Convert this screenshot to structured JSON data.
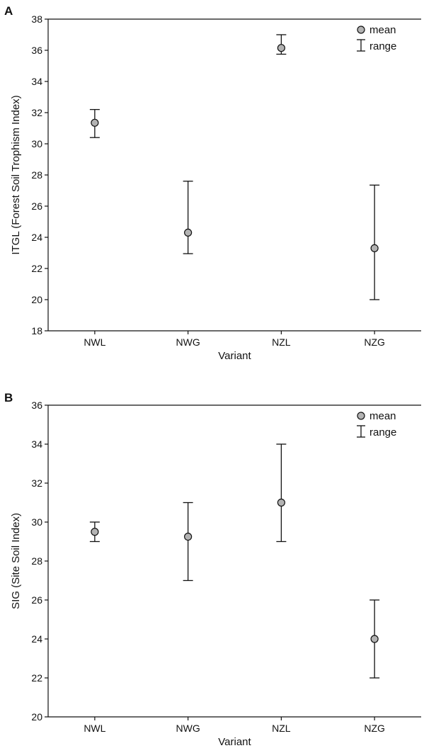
{
  "chart_data": [
    {
      "panel": "A",
      "type": "scatter",
      "xlabel": "Variant",
      "ylabel": "ITGL (Forest Soil Trophism Index)",
      "categories": [
        "NWL",
        "NWG",
        "NZL",
        "NZG"
      ],
      "ylim": [
        18,
        38
      ],
      "yticks": [
        18,
        20,
        22,
        24,
        26,
        28,
        30,
        32,
        34,
        36,
        38
      ],
      "series": [
        {
          "name": "mean",
          "values": [
            31.35,
            24.3,
            36.15,
            23.3
          ]
        },
        {
          "name": "range",
          "min": [
            30.4,
            22.95,
            35.75,
            20.0
          ],
          "max": [
            32.2,
            27.6,
            37.0,
            27.35
          ]
        }
      ],
      "legend": {
        "position": "top-right",
        "entries": [
          "mean",
          "range"
        ]
      }
    },
    {
      "panel": "B",
      "type": "scatter",
      "xlabel": "Variant",
      "ylabel": "SIG (Site Soil Index)",
      "categories": [
        "NWL",
        "NWG",
        "NZL",
        "NZG"
      ],
      "ylim": [
        20,
        36
      ],
      "yticks": [
        20,
        22,
        24,
        26,
        28,
        30,
        32,
        34,
        36
      ],
      "series": [
        {
          "name": "mean",
          "values": [
            29.5,
            29.25,
            31.0,
            24.0
          ]
        },
        {
          "name": "range",
          "min": [
            29.0,
            27.0,
            29.0,
            22.0
          ],
          "max": [
            30.0,
            31.0,
            34.0,
            26.0
          ]
        }
      ],
      "legend": {
        "position": "top-right",
        "entries": [
          "mean",
          "range"
        ]
      }
    }
  ],
  "colors": {
    "marker_fill": "#b3b3b3",
    "stroke": "#111111"
  }
}
